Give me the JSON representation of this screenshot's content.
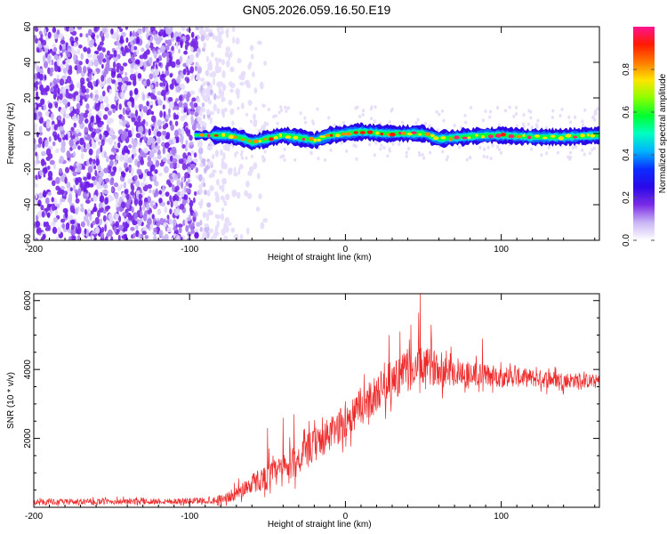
{
  "title": "GN05.2026.059.16.50.E19",
  "chart_data": [
    {
      "type": "heatmap",
      "name": "spectrogram",
      "xlabel": "Height of straight line (km)",
      "ylabel": "Frequency (Hz)",
      "xlim": [
        -200,
        163
      ],
      "ylim": [
        -60,
        60
      ],
      "xticks": [
        -200,
        -100,
        0,
        100
      ],
      "yticks": [
        -60,
        -40,
        -20,
        0,
        20,
        40,
        60
      ],
      "noise_region_km": [
        -200,
        -75
      ],
      "signal": {
        "start_km": -97,
        "center_hz": [
          [
            -95,
            -1
          ],
          [
            -75,
            -1
          ],
          [
            -65,
            -3
          ],
          [
            -60,
            -5
          ],
          [
            -50,
            -3
          ],
          [
            -40,
            -1
          ],
          [
            -25,
            -3
          ],
          [
            -20,
            -4
          ],
          [
            -10,
            -1
          ],
          [
            0,
            0
          ],
          [
            10,
            1
          ],
          [
            25,
            0
          ],
          [
            40,
            0
          ],
          [
            50,
            0
          ],
          [
            60,
            -3
          ],
          [
            75,
            -2
          ],
          [
            90,
            -1
          ],
          [
            100,
            -1
          ],
          [
            120,
            -2
          ],
          [
            140,
            -2
          ],
          [
            163,
            -1
          ]
        ],
        "halfwidth_hz": 3
      },
      "colorbar": {
        "label": "Normalized spectral amplitude",
        "range": [
          0,
          1
        ],
        "ticks": [
          "0.0",
          "0.2",
          "0.4",
          "0.6",
          "0.8"
        ],
        "tick_values": [
          0.0,
          0.2,
          0.4,
          0.6,
          0.8
        ],
        "stops": [
          "#ffffff",
          "#c9b6f5",
          "#7a2be6",
          "#2a08e8",
          "#0a2cff",
          "#00b4ff",
          "#00ffc0",
          "#00ff30",
          "#8cff00",
          "#ffe400",
          "#ff7a00",
          "#ff1a00",
          "#ff1490"
        ]
      }
    },
    {
      "type": "line",
      "name": "snr",
      "xlabel": "Height of straight line (km)",
      "ylabel": "SNR (10 * v/v)",
      "xlim": [
        -200,
        163
      ],
      "ylim": [
        0,
        6200
      ],
      "xticks": [
        -200,
        -100,
        0,
        100
      ],
      "yticks": [
        2000,
        4000,
        6000
      ],
      "color": "#ee2a2a",
      "trend": {
        "x": [
          -200,
          -100,
          -85,
          -75,
          -70,
          -60,
          -50,
          -40,
          -30,
          -20,
          -10,
          0,
          10,
          20,
          30,
          40,
          50,
          60,
          70,
          80,
          100,
          120,
          140,
          163
        ],
        "y": [
          150,
          180,
          200,
          300,
          400,
          700,
          900,
          1100,
          1400,
          1800,
          2100,
          2500,
          2900,
          3300,
          3700,
          3950,
          4100,
          4050,
          3950,
          3850,
          3800,
          3750,
          3700,
          3650
        ]
      },
      "noise_amplitude": {
        "x": [
          -200,
          -100,
          -80,
          -60,
          -40,
          -20,
          0,
          20,
          40,
          60,
          100,
          163
        ],
        "y": [
          80,
          90,
          120,
          300,
          450,
          500,
          520,
          560,
          600,
          500,
          300,
          200
        ]
      },
      "spikes": [
        {
          "x": -50,
          "y": 2300
        },
        {
          "x": -49,
          "y": 1700
        },
        {
          "x": -40,
          "y": 2600
        },
        {
          "x": -33,
          "y": 2700
        },
        {
          "x": 25,
          "y": 4200
        },
        {
          "x": 28,
          "y": 5000
        },
        {
          "x": 35,
          "y": 5100
        },
        {
          "x": 42,
          "y": 5300
        },
        {
          "x": 47,
          "y": 5650
        },
        {
          "x": 48,
          "y": 6200
        },
        {
          "x": 55,
          "y": 5300
        },
        {
          "x": 88,
          "y": 4900
        }
      ]
    }
  ]
}
